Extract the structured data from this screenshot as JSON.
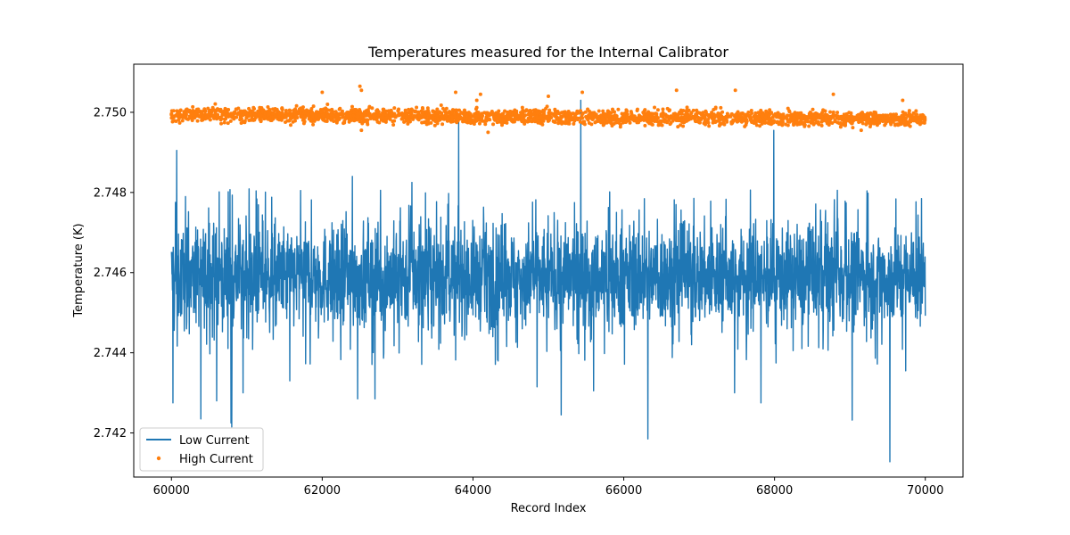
{
  "chart_data": {
    "type": "line",
    "title": "Temperatures measured for the Internal Calibrator",
    "xlabel": "Record Index",
    "ylabel": "Temperature (K)",
    "xlim": [
      59500,
      70500
    ],
    "ylim": [
      2.7409,
      2.7512
    ],
    "xticks": [
      60000,
      62000,
      64000,
      66000,
      68000,
      70000
    ],
    "yticks": [
      2.742,
      2.744,
      2.746,
      2.748,
      2.75
    ],
    "ytick_labels": [
      "2.742",
      "2.744",
      "2.746",
      "2.748",
      "2.750"
    ],
    "legend_position": "lower-left",
    "grid": false,
    "series": [
      {
        "name": "Low Current",
        "style": "line",
        "color": "#1f77b4",
        "x_range": [
          60000,
          70000
        ],
        "mean": 2.7459,
        "typical_low": 2.7448,
        "typical_high": 2.747,
        "spike_extremes": [
          {
            "x": 60020,
            "y": 2.74275
          },
          {
            "x": 60070,
            "y": 2.74905
          },
          {
            "x": 60390,
            "y": 2.74235
          },
          {
            "x": 60600,
            "y": 2.7428
          },
          {
            "x": 60790,
            "y": 2.74225
          },
          {
            "x": 60800,
            "y": 2.74215
          },
          {
            "x": 60950,
            "y": 2.743
          },
          {
            "x": 61570,
            "y": 2.7433
          },
          {
            "x": 62400,
            "y": 2.7484
          },
          {
            "x": 62470,
            "y": 2.74285
          },
          {
            "x": 62700,
            "y": 2.74285
          },
          {
            "x": 63190,
            "y": 2.74825
          },
          {
            "x": 63810,
            "y": 2.74975
          },
          {
            "x": 64850,
            "y": 2.74315
          },
          {
            "x": 65170,
            "y": 2.74245
          },
          {
            "x": 65430,
            "y": 2.7503
          },
          {
            "x": 65600,
            "y": 2.74305
          },
          {
            "x": 66320,
            "y": 2.74185
          },
          {
            "x": 66900,
            "y": 2.7442
          },
          {
            "x": 67470,
            "y": 2.743
          },
          {
            "x": 67820,
            "y": 2.74275
          },
          {
            "x": 67990,
            "y": 2.74955
          },
          {
            "x": 69030,
            "y": 2.74232
          },
          {
            "x": 69530,
            "y": 2.74128
          },
          {
            "x": 69740,
            "y": 2.74355
          }
        ]
      },
      {
        "name": "High Current",
        "style": "scatter",
        "color": "#ff7f0e",
        "x_range": [
          60000,
          70000
        ],
        "mean": 2.7499,
        "typical_spread": 0.00015,
        "outliers": [
          {
            "x": 62000,
            "y": 2.7505
          },
          {
            "x": 62500,
            "y": 2.75065
          },
          {
            "x": 62520,
            "y": 2.75055
          },
          {
            "x": 62070,
            "y": 2.7502
          },
          {
            "x": 63770,
            "y": 2.7505
          },
          {
            "x": 64100,
            "y": 2.75045
          },
          {
            "x": 64050,
            "y": 2.7503
          },
          {
            "x": 65000,
            "y": 2.7504
          },
          {
            "x": 65450,
            "y": 2.7505
          },
          {
            "x": 66700,
            "y": 2.75055
          },
          {
            "x": 67480,
            "y": 2.75055
          },
          {
            "x": 68780,
            "y": 2.75045
          },
          {
            "x": 69700,
            "y": 2.7503
          },
          {
            "x": 62520,
            "y": 2.74955
          },
          {
            "x": 64200,
            "y": 2.7495
          },
          {
            "x": 69150,
            "y": 2.74955
          }
        ]
      }
    ]
  }
}
